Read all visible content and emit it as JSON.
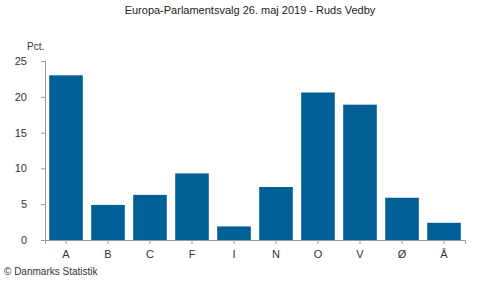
{
  "chart_data": {
    "type": "bar",
    "title": "Europa-Parlamentsvalg 26. maj 2019 - Ruds Vedby",
    "y_label": "Pct.",
    "source": "© Danmarks Statistik",
    "categories": [
      "A",
      "B",
      "C",
      "F",
      "I",
      "N",
      "O",
      "V",
      "Ø",
      "Å"
    ],
    "values": [
      23.0,
      4.9,
      6.3,
      9.3,
      1.9,
      7.4,
      20.6,
      18.9,
      5.9,
      2.4
    ],
    "color": "#005f94",
    "ylim": [
      0,
      25
    ],
    "yticks": [
      0,
      5,
      10,
      15,
      20,
      25
    ],
    "grid": false
  }
}
